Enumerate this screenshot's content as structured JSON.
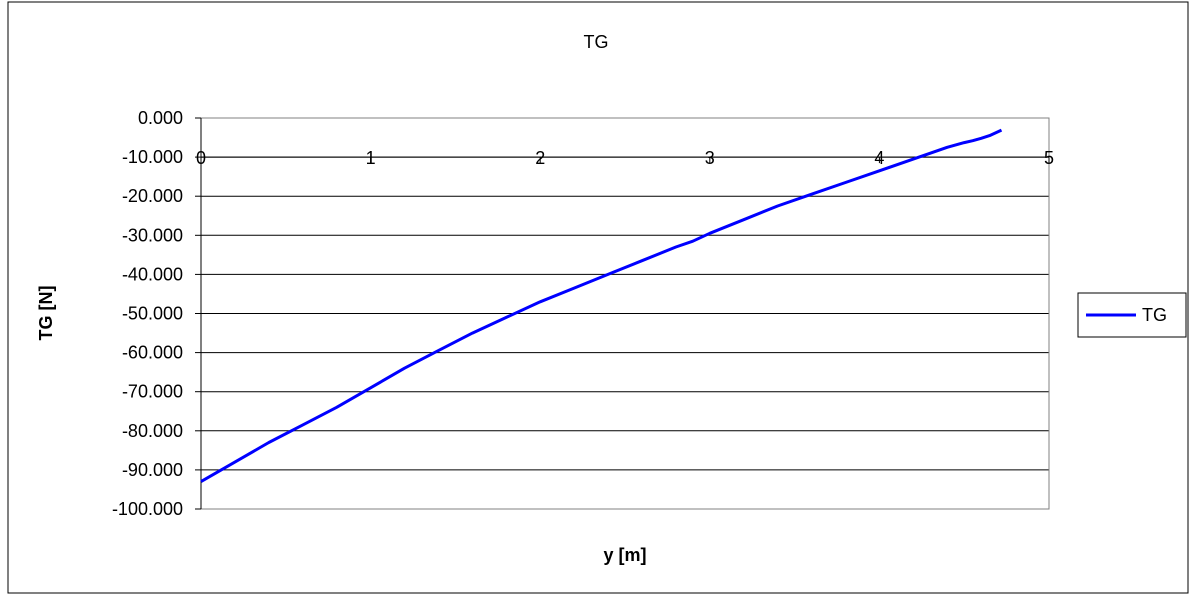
{
  "chart_data": {
    "type": "line",
    "title": "TG",
    "xlabel": "y [m]",
    "ylabel": "TG [N]",
    "xlim": [
      0,
      5
    ],
    "ylim": [
      -100,
      0
    ],
    "x_ticks": [
      "0",
      "1",
      "2",
      "3",
      "4",
      "5"
    ],
    "y_ticks": [
      "0.000",
      "-10.000",
      "-20.000",
      "-30.000",
      "-40.000",
      "-50.000",
      "-60.000",
      "-70.000",
      "-80.000",
      "-90.000",
      "-100.000"
    ],
    "x_axis_crosses_at": -10,
    "grid": "horizontal major gridlines",
    "legend_position": "right",
    "series": [
      {
        "name": "TG",
        "color": "#0000ff",
        "x": [
          0,
          0.2,
          0.4,
          0.6,
          0.8,
          1.0,
          1.2,
          1.4,
          1.6,
          1.8,
          2.0,
          2.2,
          2.4,
          2.6,
          2.8,
          2.9,
          3.0,
          3.2,
          3.4,
          3.6,
          3.8,
          4.0,
          4.2,
          4.3,
          4.4,
          4.5,
          4.55,
          4.6,
          4.65,
          4.72
        ],
        "y": [
          -93,
          -88,
          -83,
          -78.5,
          -74,
          -69,
          -64,
          -59.5,
          -55,
          -51,
          -47,
          -43.5,
          -40,
          -36.5,
          -33,
          -31.5,
          -29.5,
          -26,
          -22.5,
          -19.5,
          -16.5,
          -13.5,
          -10.5,
          -9,
          -7.5,
          -6.3,
          -5.8,
          -5.2,
          -4.5,
          -3.1
        ]
      }
    ]
  }
}
